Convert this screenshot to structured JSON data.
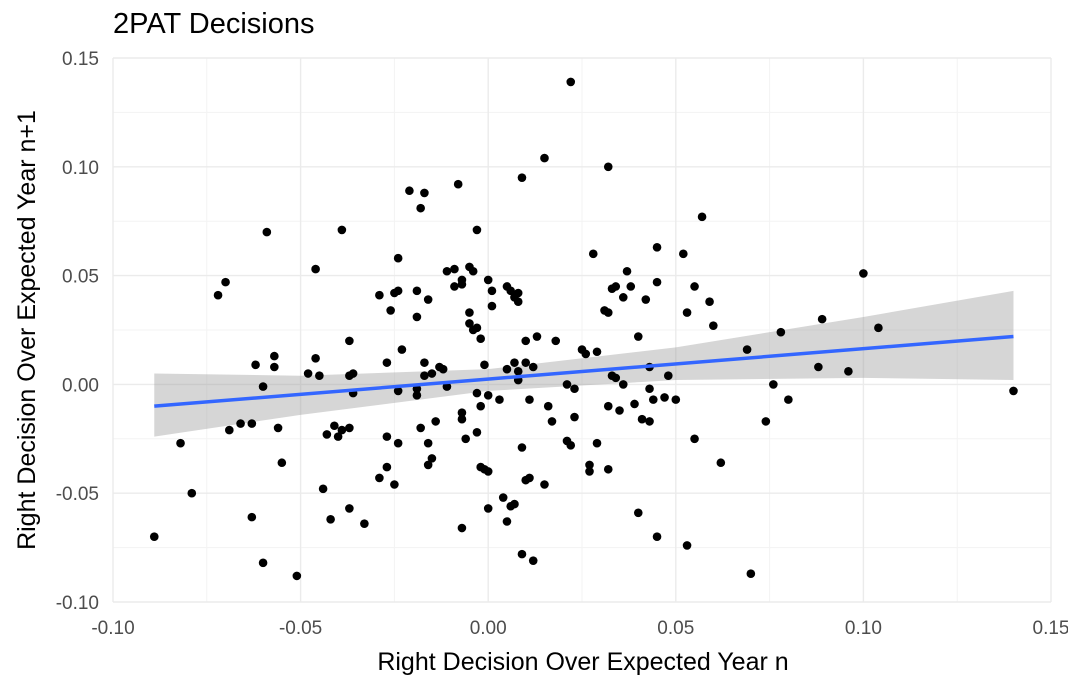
{
  "chart_data": {
    "type": "scatter",
    "title": "2PAT Decisions",
    "xlabel": "Right Decision Over Expected Year n",
    "ylabel": "Right Decision Over Expected Year n+1",
    "xlim": [
      -0.1,
      0.15
    ],
    "ylim": [
      -0.1,
      0.15
    ],
    "x_ticks": [
      -0.1,
      -0.05,
      0.0,
      0.05,
      0.1,
      0.15
    ],
    "x_tick_labels": [
      "-0.10",
      "-0.05",
      "0.00",
      "0.05",
      "0.10",
      "0.15"
    ],
    "y_ticks": [
      -0.1,
      -0.05,
      0.0,
      0.05,
      0.1,
      0.15
    ],
    "y_tick_labels": [
      "-0.10",
      "-0.05",
      "0.00",
      "0.05",
      "0.10",
      "0.15"
    ],
    "grid": true,
    "colors": {
      "points": "#000000",
      "fit_line": "#3366ff",
      "confidence_band": "#999999"
    },
    "points": [
      [
        -0.089,
        -0.07
      ],
      [
        -0.082,
        -0.027
      ],
      [
        -0.079,
        -0.05
      ],
      [
        -0.072,
        0.041
      ],
      [
        -0.07,
        0.047
      ],
      [
        -0.069,
        -0.021
      ],
      [
        -0.066,
        -0.018
      ],
      [
        -0.063,
        -0.018
      ],
      [
        -0.063,
        -0.061
      ],
      [
        -0.062,
        0.009
      ],
      [
        -0.06,
        -0.001
      ],
      [
        -0.059,
        0.07
      ],
      [
        -0.06,
        -0.082
      ],
      [
        -0.057,
        0.013
      ],
      [
        -0.057,
        0.008
      ],
      [
        -0.056,
        -0.02
      ],
      [
        -0.055,
        -0.036
      ],
      [
        -0.051,
        -0.088
      ],
      [
        -0.048,
        0.005
      ],
      [
        -0.046,
        0.053
      ],
      [
        -0.046,
        0.012
      ],
      [
        -0.045,
        0.004
      ],
      [
        -0.044,
        -0.048
      ],
      [
        -0.043,
        -0.023
      ],
      [
        -0.042,
        -0.062
      ],
      [
        -0.041,
        -0.019
      ],
      [
        -0.04,
        -0.024
      ],
      [
        -0.039,
        0.071
      ],
      [
        -0.039,
        -0.021
      ],
      [
        -0.037,
        -0.02
      ],
      [
        -0.037,
        -0.057
      ],
      [
        -0.037,
        0.02
      ],
      [
        -0.037,
        0.004
      ],
      [
        -0.036,
        0.005
      ],
      [
        -0.036,
        -0.004
      ],
      [
        -0.033,
        -0.064
      ],
      [
        -0.029,
        0.041
      ],
      [
        -0.029,
        -0.043
      ],
      [
        -0.027,
        -0.024
      ],
      [
        -0.027,
        -0.038
      ],
      [
        -0.027,
        0.01
      ],
      [
        -0.026,
        0.034
      ],
      [
        -0.025,
        0.042
      ],
      [
        -0.025,
        -0.046
      ],
      [
        -0.024,
        0.043
      ],
      [
        -0.024,
        -0.027
      ],
      [
        -0.024,
        0.058
      ],
      [
        -0.024,
        -0.003
      ],
      [
        -0.023,
        0.016
      ],
      [
        -0.021,
        0.089
      ],
      [
        -0.019,
        0.043
      ],
      [
        -0.019,
        0.031
      ],
      [
        -0.019,
        -0.002
      ],
      [
        -0.019,
        -0.005
      ],
      [
        -0.018,
        -0.02
      ],
      [
        -0.018,
        0.081
      ],
      [
        -0.017,
        0.088
      ],
      [
        -0.017,
        0.01
      ],
      [
        -0.017,
        0.004
      ],
      [
        -0.016,
        0.039
      ],
      [
        -0.016,
        -0.037
      ],
      [
        -0.016,
        -0.027
      ],
      [
        -0.015,
        -0.034
      ],
      [
        -0.015,
        0.005
      ],
      [
        -0.014,
        -0.017
      ],
      [
        -0.013,
        0.008
      ],
      [
        -0.012,
        0.007
      ],
      [
        -0.011,
        -0.001
      ],
      [
        -0.011,
        0.052
      ],
      [
        -0.009,
        0.045
      ],
      [
        -0.009,
        0.053
      ],
      [
        -0.008,
        0.092
      ],
      [
        -0.007,
        -0.066
      ],
      [
        -0.007,
        0.046
      ],
      [
        -0.007,
        0.048
      ],
      [
        -0.007,
        -0.013
      ],
      [
        -0.007,
        -0.016
      ],
      [
        -0.006,
        -0.025
      ],
      [
        -0.005,
        0.028
      ],
      [
        -0.005,
        0.054
      ],
      [
        -0.005,
        0.033
      ],
      [
        -0.004,
        0.025
      ],
      [
        -0.004,
        0.052
      ],
      [
        -0.003,
        0.071
      ],
      [
        -0.003,
        -0.004
      ],
      [
        -0.003,
        -0.022
      ],
      [
        -0.003,
        0.026
      ],
      [
        -0.002,
        0.021
      ],
      [
        -0.002,
        -0.038
      ],
      [
        -0.002,
        -0.01
      ],
      [
        -0.001,
        -0.039
      ],
      [
        -0.001,
        0.009
      ],
      [
        0.0,
        -0.005
      ],
      [
        0.0,
        -0.04
      ],
      [
        0.0,
        -0.057
      ],
      [
        0.0,
        0.048
      ],
      [
        0.001,
        0.043
      ],
      [
        0.001,
        0.036
      ],
      [
        0.003,
        -0.007
      ],
      [
        0.004,
        -0.052
      ],
      [
        0.005,
        -0.063
      ],
      [
        0.005,
        0.007
      ],
      [
        0.005,
        0.045
      ],
      [
        0.006,
        -0.056
      ],
      [
        0.006,
        0.043
      ],
      [
        0.007,
        0.04
      ],
      [
        0.007,
        0.01
      ],
      [
        0.007,
        -0.055
      ],
      [
        0.008,
        0.002
      ],
      [
        0.008,
        0.006
      ],
      [
        0.008,
        0.042
      ],
      [
        0.008,
        0.038
      ],
      [
        0.009,
        0.095
      ],
      [
        0.009,
        -0.029
      ],
      [
        0.009,
        -0.078
      ],
      [
        0.01,
        0.02
      ],
      [
        0.01,
        -0.044
      ],
      [
        0.01,
        0.01
      ],
      [
        0.011,
        -0.043
      ],
      [
        0.011,
        -0.007
      ],
      [
        0.012,
        0.008
      ],
      [
        0.012,
        -0.081
      ],
      [
        0.013,
        0.022
      ],
      [
        0.015,
        0.104
      ],
      [
        0.015,
        -0.046
      ],
      [
        0.016,
        -0.01
      ],
      [
        0.017,
        -0.017
      ],
      [
        0.018,
        0.02
      ],
      [
        0.021,
        -0.026
      ],
      [
        0.021,
        0.0
      ],
      [
        0.022,
        0.139
      ],
      [
        0.022,
        -0.028
      ],
      [
        0.023,
        -0.015
      ],
      [
        0.023,
        -0.002
      ],
      [
        0.025,
        0.016
      ],
      [
        0.026,
        0.014
      ],
      [
        0.027,
        -0.037
      ],
      [
        0.027,
        -0.04
      ],
      [
        0.028,
        0.06
      ],
      [
        0.029,
        0.015
      ],
      [
        0.029,
        -0.027
      ],
      [
        0.031,
        0.034
      ],
      [
        0.032,
        -0.01
      ],
      [
        0.032,
        0.033
      ],
      [
        0.032,
        -0.039
      ],
      [
        0.032,
        0.1
      ],
      [
        0.033,
        0.044
      ],
      [
        0.033,
        0.004
      ],
      [
        0.034,
        0.045
      ],
      [
        0.034,
        0.003
      ],
      [
        0.035,
        -0.012
      ],
      [
        0.036,
        0.04
      ],
      [
        0.036,
        0.0
      ],
      [
        0.037,
        0.052
      ],
      [
        0.038,
        0.045
      ],
      [
        0.039,
        -0.009
      ],
      [
        0.04,
        0.022
      ],
      [
        0.04,
        -0.059
      ],
      [
        0.041,
        -0.016
      ],
      [
        0.042,
        0.039
      ],
      [
        0.043,
        0.008
      ],
      [
        0.043,
        -0.017
      ],
      [
        0.043,
        -0.002
      ],
      [
        0.044,
        -0.007
      ],
      [
        0.045,
        0.047
      ],
      [
        0.045,
        -0.07
      ],
      [
        0.045,
        0.063
      ],
      [
        0.047,
        -0.006
      ],
      [
        0.048,
        0.004
      ],
      [
        0.05,
        -0.007
      ],
      [
        0.052,
        0.06
      ],
      [
        0.053,
        0.033
      ],
      [
        0.053,
        -0.074
      ],
      [
        0.055,
        0.045
      ],
      [
        0.055,
        -0.025
      ],
      [
        0.057,
        0.077
      ],
      [
        0.059,
        0.038
      ],
      [
        0.06,
        0.027
      ],
      [
        0.062,
        -0.036
      ],
      [
        0.069,
        0.016
      ],
      [
        0.07,
        -0.087
      ],
      [
        0.074,
        -0.017
      ],
      [
        0.076,
        0.0
      ],
      [
        0.078,
        0.024
      ],
      [
        0.08,
        -0.007
      ],
      [
        0.088,
        0.008
      ],
      [
        0.089,
        0.03
      ],
      [
        0.096,
        0.006
      ],
      [
        0.1,
        0.051
      ],
      [
        0.104,
        0.026
      ],
      [
        0.14,
        -0.003
      ]
    ],
    "fit": {
      "x_start": -0.089,
      "x_end": 0.14,
      "y_start": -0.01,
      "y_end": 0.022
    },
    "confidence_band": [
      {
        "x": -0.089,
        "lower": -0.024,
        "upper": 0.005
      },
      {
        "x": -0.05,
        "lower": -0.014,
        "upper": 0.004
      },
      {
        "x": 0.0,
        "lower": -0.003,
        "upper": 0.007
      },
      {
        "x": 0.05,
        "lower": 0.002,
        "upper": 0.017
      },
      {
        "x": 0.1,
        "lower": 0.003,
        "upper": 0.031
      },
      {
        "x": 0.14,
        "lower": 0.002,
        "upper": 0.043
      }
    ]
  }
}
